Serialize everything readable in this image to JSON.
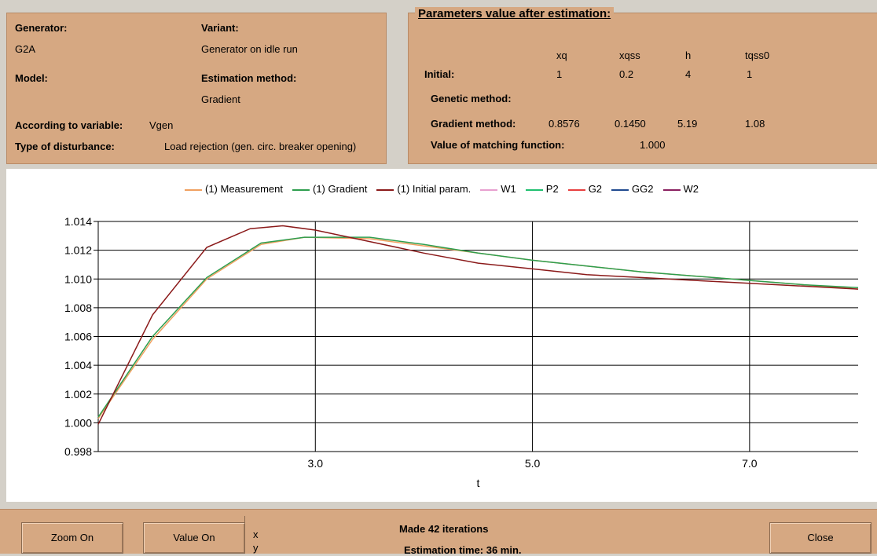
{
  "info": {
    "generator_label": "Generator:",
    "generator_value": "G2A",
    "variant_label": "Variant:",
    "variant_value": "Generator on idle run",
    "model_label": "Model:",
    "estimation_label": "Estimation method:",
    "estimation_value": "Gradient",
    "variable_label": "According to variable:",
    "variable_value": "Vgen",
    "disturbance_label": "Type of disturbance:",
    "disturbance_value": "Load rejection (gen. circ. breaker opening)"
  },
  "params": {
    "title": "Parameters value after estimation:",
    "columns": [
      "xq",
      "xqss",
      "h",
      "tqss0"
    ],
    "initial_label": "Initial:",
    "initial_values": [
      "1",
      "0.2",
      "4",
      "1"
    ],
    "genetic_label": "Genetic method:",
    "gradient_label": "Gradient method:",
    "gradient_values": [
      "0.8576",
      "0.1450",
      "5.19",
      "1.08"
    ],
    "matching_label": "Value of matching function:",
    "matching_value": "1.000"
  },
  "chart_data": {
    "type": "line",
    "xlabel": "t",
    "ylabel": "",
    "xlim": [
      1.0,
      8.0
    ],
    "ylim": [
      0.998,
      1.014
    ],
    "x_ticks": [
      "3.0",
      "5.0",
      "7.0"
    ],
    "y_ticks": [
      "1.014",
      "1.012",
      "1.010",
      "1.008",
      "1.006",
      "1.004",
      "1.002",
      "1.000",
      "0.998"
    ],
    "grid": true,
    "legend_position": "top",
    "legend": [
      {
        "name": "(1) Measurement",
        "color": "#f0a060"
      },
      {
        "name": "(1) Gradient",
        "color": "#2e9e4e"
      },
      {
        "name": "(1) Initial param.",
        "color": "#8b1a1a"
      },
      {
        "name": "W1",
        "color": "#e8a0d0"
      },
      {
        "name": "P2",
        "color": "#20c070"
      },
      {
        "name": "G2",
        "color": "#e84040"
      },
      {
        "name": "GG2",
        "color": "#204a90"
      },
      {
        "name": "W2",
        "color": "#8a2060"
      }
    ],
    "series": [
      {
        "name": "(1) Measurement",
        "color": "#f0a060",
        "x": [
          1.0,
          1.5,
          2.0,
          2.5,
          2.9,
          3.5,
          4.0,
          4.5,
          5.0,
          5.5,
          6.0,
          6.5,
          7.0,
          7.5,
          8.0
        ],
        "y": [
          1.0003,
          1.0058,
          1.01,
          1.0124,
          1.0129,
          1.0128,
          1.0123,
          1.0118,
          1.0113,
          1.0109,
          1.0105,
          1.0102,
          1.0099,
          1.0096,
          1.0093
        ]
      },
      {
        "name": "(1) Gradient",
        "color": "#2e9e4e",
        "x": [
          1.0,
          1.5,
          2.0,
          2.5,
          2.9,
          3.5,
          4.0,
          4.5,
          5.0,
          5.5,
          6.0,
          6.5,
          7.0,
          7.5,
          8.0
        ],
        "y": [
          1.0004,
          1.006,
          1.0101,
          1.0125,
          1.0129,
          1.0129,
          1.0124,
          1.0118,
          1.0113,
          1.0109,
          1.0105,
          1.0102,
          1.0099,
          1.0096,
          1.0094
        ]
      },
      {
        "name": "(1) Initial param.",
        "color": "#8b1a1a",
        "x": [
          1.0,
          1.5,
          2.0,
          2.4,
          2.7,
          3.0,
          3.5,
          4.0,
          4.5,
          5.0,
          5.5,
          6.0,
          6.5,
          7.0,
          7.5,
          8.0
        ],
        "y": [
          0.9999,
          1.0075,
          1.0122,
          1.0135,
          1.0137,
          1.0134,
          1.0126,
          1.0118,
          1.0111,
          1.0107,
          1.0103,
          1.0101,
          1.0099,
          1.0097,
          1.0095,
          1.0093
        ]
      }
    ]
  },
  "bottom": {
    "zoom_label": "Zoom On",
    "value_label": "Value On",
    "x_label": "x",
    "y_label": "y",
    "iterations_text": "Made 42 iterations",
    "time_text": "Estimation time: 36 min.",
    "close_label": "Close"
  }
}
